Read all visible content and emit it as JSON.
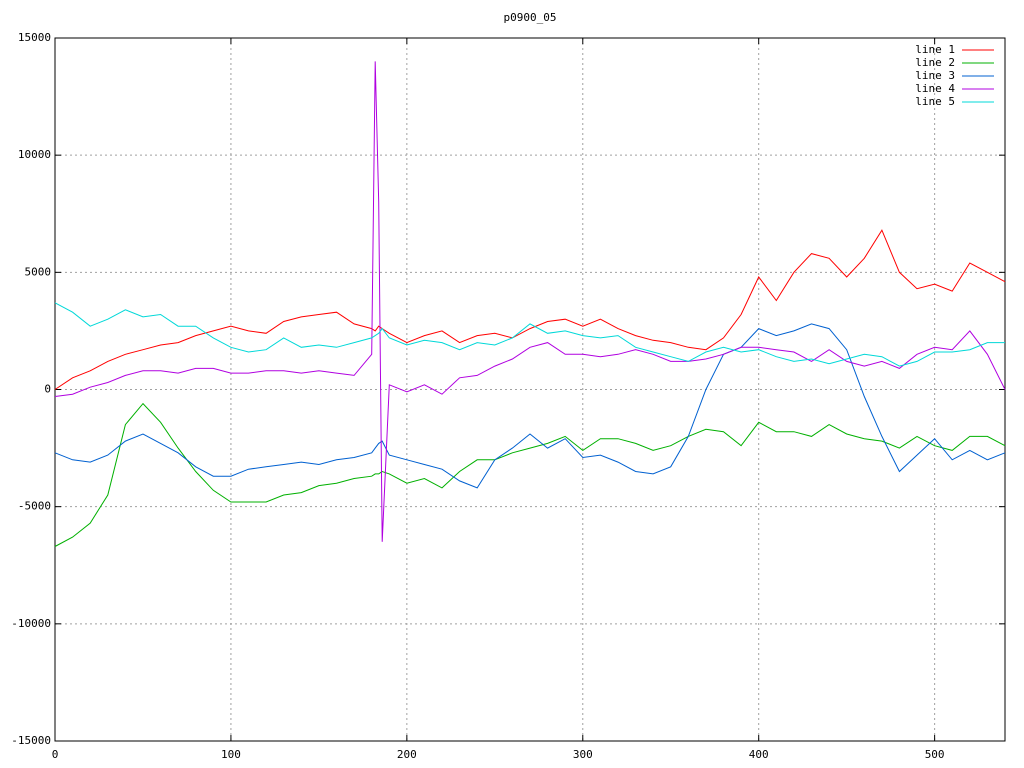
{
  "chart_data": {
    "type": "line",
    "title": "p0900_05",
    "x": [
      0,
      10,
      20,
      30,
      40,
      50,
      60,
      70,
      80,
      90,
      100,
      110,
      120,
      130,
      140,
      150,
      160,
      170,
      180,
      182,
      184,
      186,
      190,
      200,
      210,
      220,
      230,
      240,
      250,
      260,
      270,
      280,
      290,
      300,
      310,
      320,
      330,
      340,
      350,
      360,
      370,
      380,
      390,
      400,
      410,
      420,
      430,
      440,
      450,
      460,
      470,
      480,
      490,
      500,
      510,
      520,
      530,
      540
    ],
    "series": [
      {
        "name": "line 1",
        "color": "#ff0000",
        "values": [
          0,
          500,
          800,
          1200,
          1500,
          1700,
          1900,
          2000,
          2300,
          2500,
          2700,
          2500,
          2400,
          2900,
          3100,
          3200,
          3300,
          2800,
          2600,
          2500,
          2700,
          2600,
          2400,
          2000,
          2300,
          2500,
          2000,
          2300,
          2400,
          2200,
          2600,
          2900,
          3000,
          2700,
          3000,
          2600,
          2300,
          2100,
          2000,
          1800,
          1700,
          2200,
          3200,
          4800,
          3800,
          5000,
          5800,
          5600,
          4800,
          5600,
          6800,
          5000,
          4300,
          4500,
          4200,
          5400,
          5000,
          4600
        ]
      },
      {
        "name": "line 2",
        "color": "#00b000",
        "values": [
          -6700,
          -6300,
          -5700,
          -4500,
          -1500,
          -600,
          -1400,
          -2500,
          -3500,
          -4300,
          -4800,
          -4800,
          -4800,
          -4500,
          -4400,
          -4100,
          -4000,
          -3800,
          -3700,
          -3600,
          -3600,
          -3500,
          -3600,
          -4000,
          -3800,
          -4200,
          -3500,
          -3000,
          -3000,
          -2700,
          -2500,
          -2300,
          -2000,
          -2600,
          -2100,
          -2100,
          -2300,
          -2600,
          -2400,
          -2000,
          -1700,
          -1800,
          -2400,
          -1400,
          -1800,
          -1800,
          -2000,
          -1500,
          -1900,
          -2100,
          -2200,
          -2500,
          -2000,
          -2400,
          -2600,
          -2000,
          -2000,
          -2400
        ]
      },
      {
        "name": "line 3",
        "color": "#0060d0",
        "values": [
          -2700,
          -3000,
          -3100,
          -2800,
          -2200,
          -1900,
          -2300,
          -2700,
          -3300,
          -3700,
          -3700,
          -3400,
          -3300,
          -3200,
          -3100,
          -3200,
          -3000,
          -2900,
          -2700,
          -2500,
          -2300,
          -2200,
          -2800,
          -3000,
          -3200,
          -3400,
          -3900,
          -4200,
          -3000,
          -2500,
          -1900,
          -2500,
          -2100,
          -2900,
          -2800,
          -3100,
          -3500,
          -3600,
          -3300,
          -2000,
          0,
          1500,
          1800,
          2600,
          2300,
          2500,
          2800,
          2600,
          1700,
          -300,
          -2000,
          -3500,
          -2800,
          -2100,
          -3000,
          -2600,
          -3000,
          -2700
        ]
      },
      {
        "name": "line 4",
        "color": "#b000e0",
        "values": [
          -300,
          -200,
          100,
          300,
          600,
          800,
          800,
          700,
          900,
          900,
          700,
          700,
          800,
          800,
          700,
          800,
          700,
          600,
          1500,
          14000,
          8000,
          -6500,
          200,
          -100,
          200,
          -200,
          500,
          600,
          1000,
          1300,
          1800,
          2000,
          1500,
          1500,
          1400,
          1500,
          1700,
          1500,
          1200,
          1200,
          1300,
          1500,
          1800,
          1800,
          1700,
          1600,
          1200,
          1700,
          1200,
          1000,
          1200,
          900,
          1500,
          1800,
          1700,
          2500,
          1500,
          0
        ]
      },
      {
        "name": "line 5",
        "color": "#00d8d8",
        "values": [
          3700,
          3300,
          2700,
          3000,
          3400,
          3100,
          3200,
          2700,
          2700,
          2200,
          1800,
          1600,
          1700,
          2200,
          1800,
          1900,
          1800,
          2000,
          2200,
          2300,
          2400,
          2600,
          2200,
          1900,
          2100,
          2000,
          1700,
          2000,
          1900,
          2200,
          2800,
          2400,
          2500,
          2300,
          2200,
          2300,
          1800,
          1600,
          1400,
          1200,
          1600,
          1800,
          1600,
          1700,
          1400,
          1200,
          1300,
          1100,
          1300,
          1500,
          1400,
          1000,
          1200,
          1600,
          1600,
          1700,
          2000,
          2000
        ]
      }
    ],
    "xlim": [
      0,
      540
    ],
    "xticks": [
      0,
      100,
      200,
      300,
      400,
      500
    ],
    "ylim": [
      -15000,
      15000
    ],
    "yticks": [
      -15000,
      -10000,
      -5000,
      0,
      5000,
      10000,
      15000
    ],
    "grid": true,
    "legend": "top-right"
  }
}
